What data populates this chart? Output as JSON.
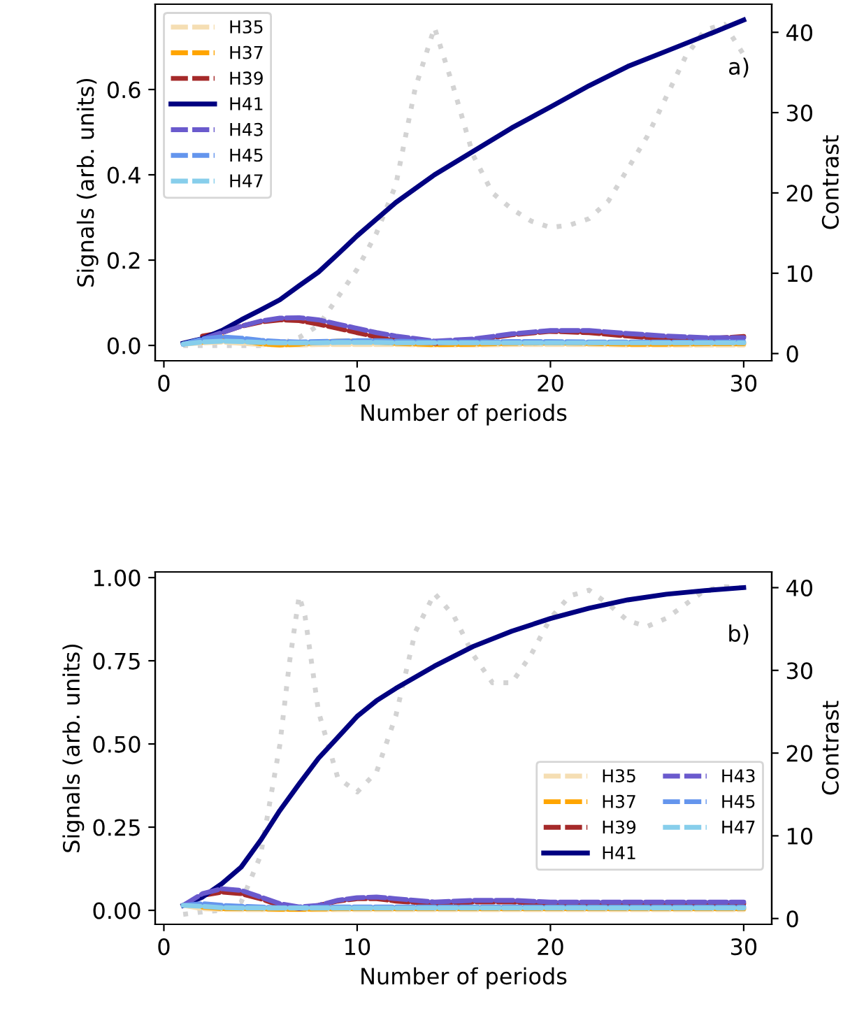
{
  "chart_data": [
    {
      "type": "line",
      "xlabel": "Number of periods",
      "ylabel": "Signals (arb. units)",
      "y2label": "Contrast",
      "annotations": [
        "a)"
      ],
      "legend": "top left",
      "grid": false,
      "marker": "none",
      "xlim": [
        -0.45,
        31.45
      ],
      "xticks": [
        0,
        10,
        20,
        30
      ],
      "ylim": [
        -0.036,
        0.8
      ],
      "yticks": [
        {
          "value": 0,
          "label": "0.0"
        },
        0.2,
        0.4,
        0.6
      ],
      "y2lim": [
        -0.9,
        43.5
      ],
      "y2ticks": [
        0,
        10,
        20,
        30,
        40
      ],
      "x": [
        1,
        2,
        3,
        4,
        5,
        6,
        7,
        8,
        9,
        10,
        11,
        12,
        14,
        16,
        18,
        20,
        22,
        24,
        26,
        28,
        30
      ],
      "series": [
        {
          "name": "H35",
          "color": "#f5deb3",
          "line_style": "dashed",
          "values": [
            0.003,
            0.006,
            0.008,
            0.005,
            0.002,
            0.001,
            0.001,
            0.002,
            0.002,
            0.002,
            0.002,
            0.002,
            0.001,
            0.001,
            0.002,
            0.002,
            0.002,
            0.001,
            0.001,
            0.001,
            0.001
          ]
        },
        {
          "name": "H37",
          "color": "#ffa500",
          "line_style": "dashed",
          "values": [
            null,
            0.008,
            0.02,
            0.012,
            0.004,
            0.001,
            0.003,
            0.007,
            0.01,
            0.01,
            0.008,
            0.005,
            0.002,
            0.003,
            0.005,
            0.006,
            0.005,
            0.003,
            0.003,
            0.004,
            0.004
          ]
        },
        {
          "name": "H39",
          "color": "#a52a2a",
          "line_style": "dashed",
          "values": [
            null,
            0.022,
            0.03,
            0.045,
            0.055,
            0.06,
            0.058,
            0.05,
            0.04,
            0.03,
            0.02,
            0.012,
            0.005,
            0.012,
            0.025,
            0.033,
            0.03,
            0.022,
            0.015,
            0.015,
            0.021
          ]
        },
        {
          "name": "H41",
          "color": "#000080",
          "line_style": "solid",
          "values": [
            0.005,
            0.016,
            0.035,
            0.06,
            0.083,
            0.107,
            0.14,
            0.172,
            0.214,
            0.257,
            0.296,
            0.335,
            0.4,
            0.455,
            0.51,
            0.559,
            0.609,
            0.654,
            0.69,
            0.726,
            0.763
          ]
        },
        {
          "name": "H43",
          "color": "#6a5acd",
          "line_style": "dashed",
          "values": [
            0.003,
            0.015,
            0.03,
            0.045,
            0.057,
            0.064,
            0.065,
            0.06,
            0.05,
            0.04,
            0.03,
            0.022,
            0.01,
            0.015,
            0.027,
            0.035,
            0.035,
            0.028,
            0.022,
            0.018,
            0.018
          ]
        },
        {
          "name": "H45",
          "color": "#6495ed",
          "line_style": "dashed",
          "values": [
            0.003,
            0.015,
            0.02,
            0.017,
            0.012,
            0.009,
            0.008,
            0.009,
            0.01,
            0.011,
            0.011,
            0.01,
            0.008,
            0.008,
            0.009,
            0.009,
            0.008,
            0.008,
            0.008,
            0.008,
            0.008
          ]
        },
        {
          "name": "H47",
          "color": "#87ceeb",
          "line_style": "dashed",
          "values": [
            0.003,
            0.008,
            0.01,
            0.009,
            0.007,
            0.006,
            0.006,
            0.006,
            0.007,
            0.007,
            0.007,
            0.006,
            0.006,
            0.006,
            0.006,
            0.006,
            0.006,
            0.006,
            0.006,
            0.006,
            0.006
          ]
        },
        {
          "color": "#d3d3d3",
          "line_style": "dotted",
          "axis": "y2",
          "x": [
            1,
            2,
            3,
            4,
            5,
            6,
            7,
            8,
            9,
            10,
            11,
            12,
            13,
            14,
            15,
            16,
            17,
            18,
            19,
            20,
            21,
            22,
            23,
            24,
            25,
            26,
            27,
            28,
            29,
            30
          ],
          "values": [
            1,
            1,
            1,
            1,
            1,
            1.2,
            2,
            3.5,
            7,
            10.5,
            15,
            21,
            33,
            40.6,
            33,
            24.7,
            20,
            18,
            16.5,
            15.7,
            16,
            16.8,
            19,
            23,
            27,
            32,
            37,
            40.3,
            41,
            37.2
          ]
        }
      ]
    },
    {
      "type": "line",
      "xlabel": "Number of periods",
      "ylabel": "Signals (arb. units)",
      "y2label": "Contrast",
      "annotations": [
        "b)"
      ],
      "legend": "bottom right",
      "grid": false,
      "marker": "none",
      "xlim": [
        -0.45,
        31.45
      ],
      "xticks": [
        0,
        10,
        20,
        30
      ],
      "ylim": [
        -0.042,
        1.017
      ],
      "yticks": [
        {
          "value": 0,
          "label": "0.00"
        },
        0.25,
        {
          "value": 0.5,
          "label": "0.50"
        },
        0.75,
        {
          "value": 1,
          "label": "1.00"
        }
      ],
      "y2lim": [
        -0.7,
        41.9
      ],
      "y2ticks": [
        0,
        10,
        20,
        30,
        40
      ],
      "x": [
        1,
        2,
        3,
        4,
        5,
        6,
        7,
        8,
        9,
        10,
        11,
        12,
        14,
        16,
        18,
        20,
        22,
        24,
        26,
        28,
        30
      ],
      "series": [
        {
          "name": "H35",
          "color": "#f5deb3",
          "line_style": "dashed",
          "values": [
            0.015,
            0.005,
            0.003,
            0.002,
            0.002,
            0.002,
            0.002,
            0.002,
            0.002,
            0.002,
            0.002,
            0.002,
            0.002,
            0.002,
            0.002,
            0.002,
            0.002,
            0.002,
            0.002,
            0.002,
            0.002
          ]
        },
        {
          "name": "H37",
          "color": "#ffa500",
          "line_style": "dashed",
          "values": [
            null,
            0.01,
            0.005,
            0.005,
            0.005,
            0.003,
            0.003,
            0.004,
            0.005,
            0.005,
            0.005,
            0.005,
            0.005,
            0.005,
            0.005,
            0.005,
            0.005,
            0.005,
            0.005,
            0.005,
            0.005
          ]
        },
        {
          "name": "H39",
          "color": "#a52a2a",
          "line_style": "dashed",
          "values": [
            null,
            0.045,
            0.055,
            0.05,
            0.035,
            0.015,
            0.005,
            0.015,
            0.028,
            0.035,
            0.035,
            0.028,
            0.02,
            0.025,
            0.025,
            0.02,
            0.02,
            0.02,
            0.02,
            0.02,
            0.02
          ]
        },
        {
          "name": "H41",
          "color": "#000080",
          "line_style": "solid",
          "values": [
            0.015,
            0.04,
            0.08,
            0.13,
            0.21,
            0.3,
            0.38,
            0.457,
            0.52,
            0.583,
            0.63,
            0.667,
            0.734,
            0.793,
            0.839,
            0.877,
            0.908,
            0.933,
            0.95,
            0.961,
            0.97
          ]
        },
        {
          "name": "H43",
          "color": "#6a5acd",
          "line_style": "dashed",
          "values": [
            0.015,
            0.05,
            0.065,
            0.06,
            0.04,
            0.02,
            0.01,
            0.015,
            0.03,
            0.038,
            0.04,
            0.035,
            0.025,
            0.03,
            0.03,
            0.025,
            0.025,
            0.025,
            0.025,
            0.025,
            0.025
          ]
        },
        {
          "name": "H45",
          "color": "#6495ed",
          "line_style": "dashed",
          "values": [
            0.015,
            0.02,
            0.015,
            0.012,
            0.01,
            0.008,
            0.008,
            0.009,
            0.01,
            0.01,
            0.01,
            0.01,
            0.01,
            0.01,
            0.01,
            0.01,
            0.01,
            0.01,
            0.01,
            0.01,
            0.01
          ]
        },
        {
          "name": "H47",
          "color": "#87ceeb",
          "line_style": "dashed",
          "values": [
            0.015,
            0.012,
            0.008,
            0.007,
            0.007,
            0.007,
            0.007,
            0.007,
            0.007,
            0.007,
            0.007,
            0.007,
            0.007,
            0.007,
            0.007,
            0.007,
            0.007,
            0.007,
            0.007,
            0.007,
            0.007
          ]
        },
        {
          "color": "#d3d3d3",
          "line_style": "dotted",
          "axis": "y2",
          "x": [
            1,
            2,
            3,
            4,
            5,
            6,
            6.5,
            7,
            7.3,
            8,
            9,
            10,
            11,
            12,
            13,
            14,
            15,
            16,
            17,
            18,
            19,
            20,
            21,
            22,
            23,
            24,
            25,
            26,
            27,
            28,
            29,
            30
          ],
          "values": [
            0.5,
            0.8,
            1,
            2,
            7.6,
            21,
            31,
            39,
            36.6,
            25,
            17,
            15.3,
            17.7,
            24.5,
            34.6,
            39.3,
            36.6,
            31.9,
            28.5,
            28.5,
            31.9,
            36.3,
            39,
            39.7,
            38,
            36,
            35.3,
            36.3,
            38,
            39.7,
            40.1,
            40
          ]
        }
      ]
    }
  ]
}
